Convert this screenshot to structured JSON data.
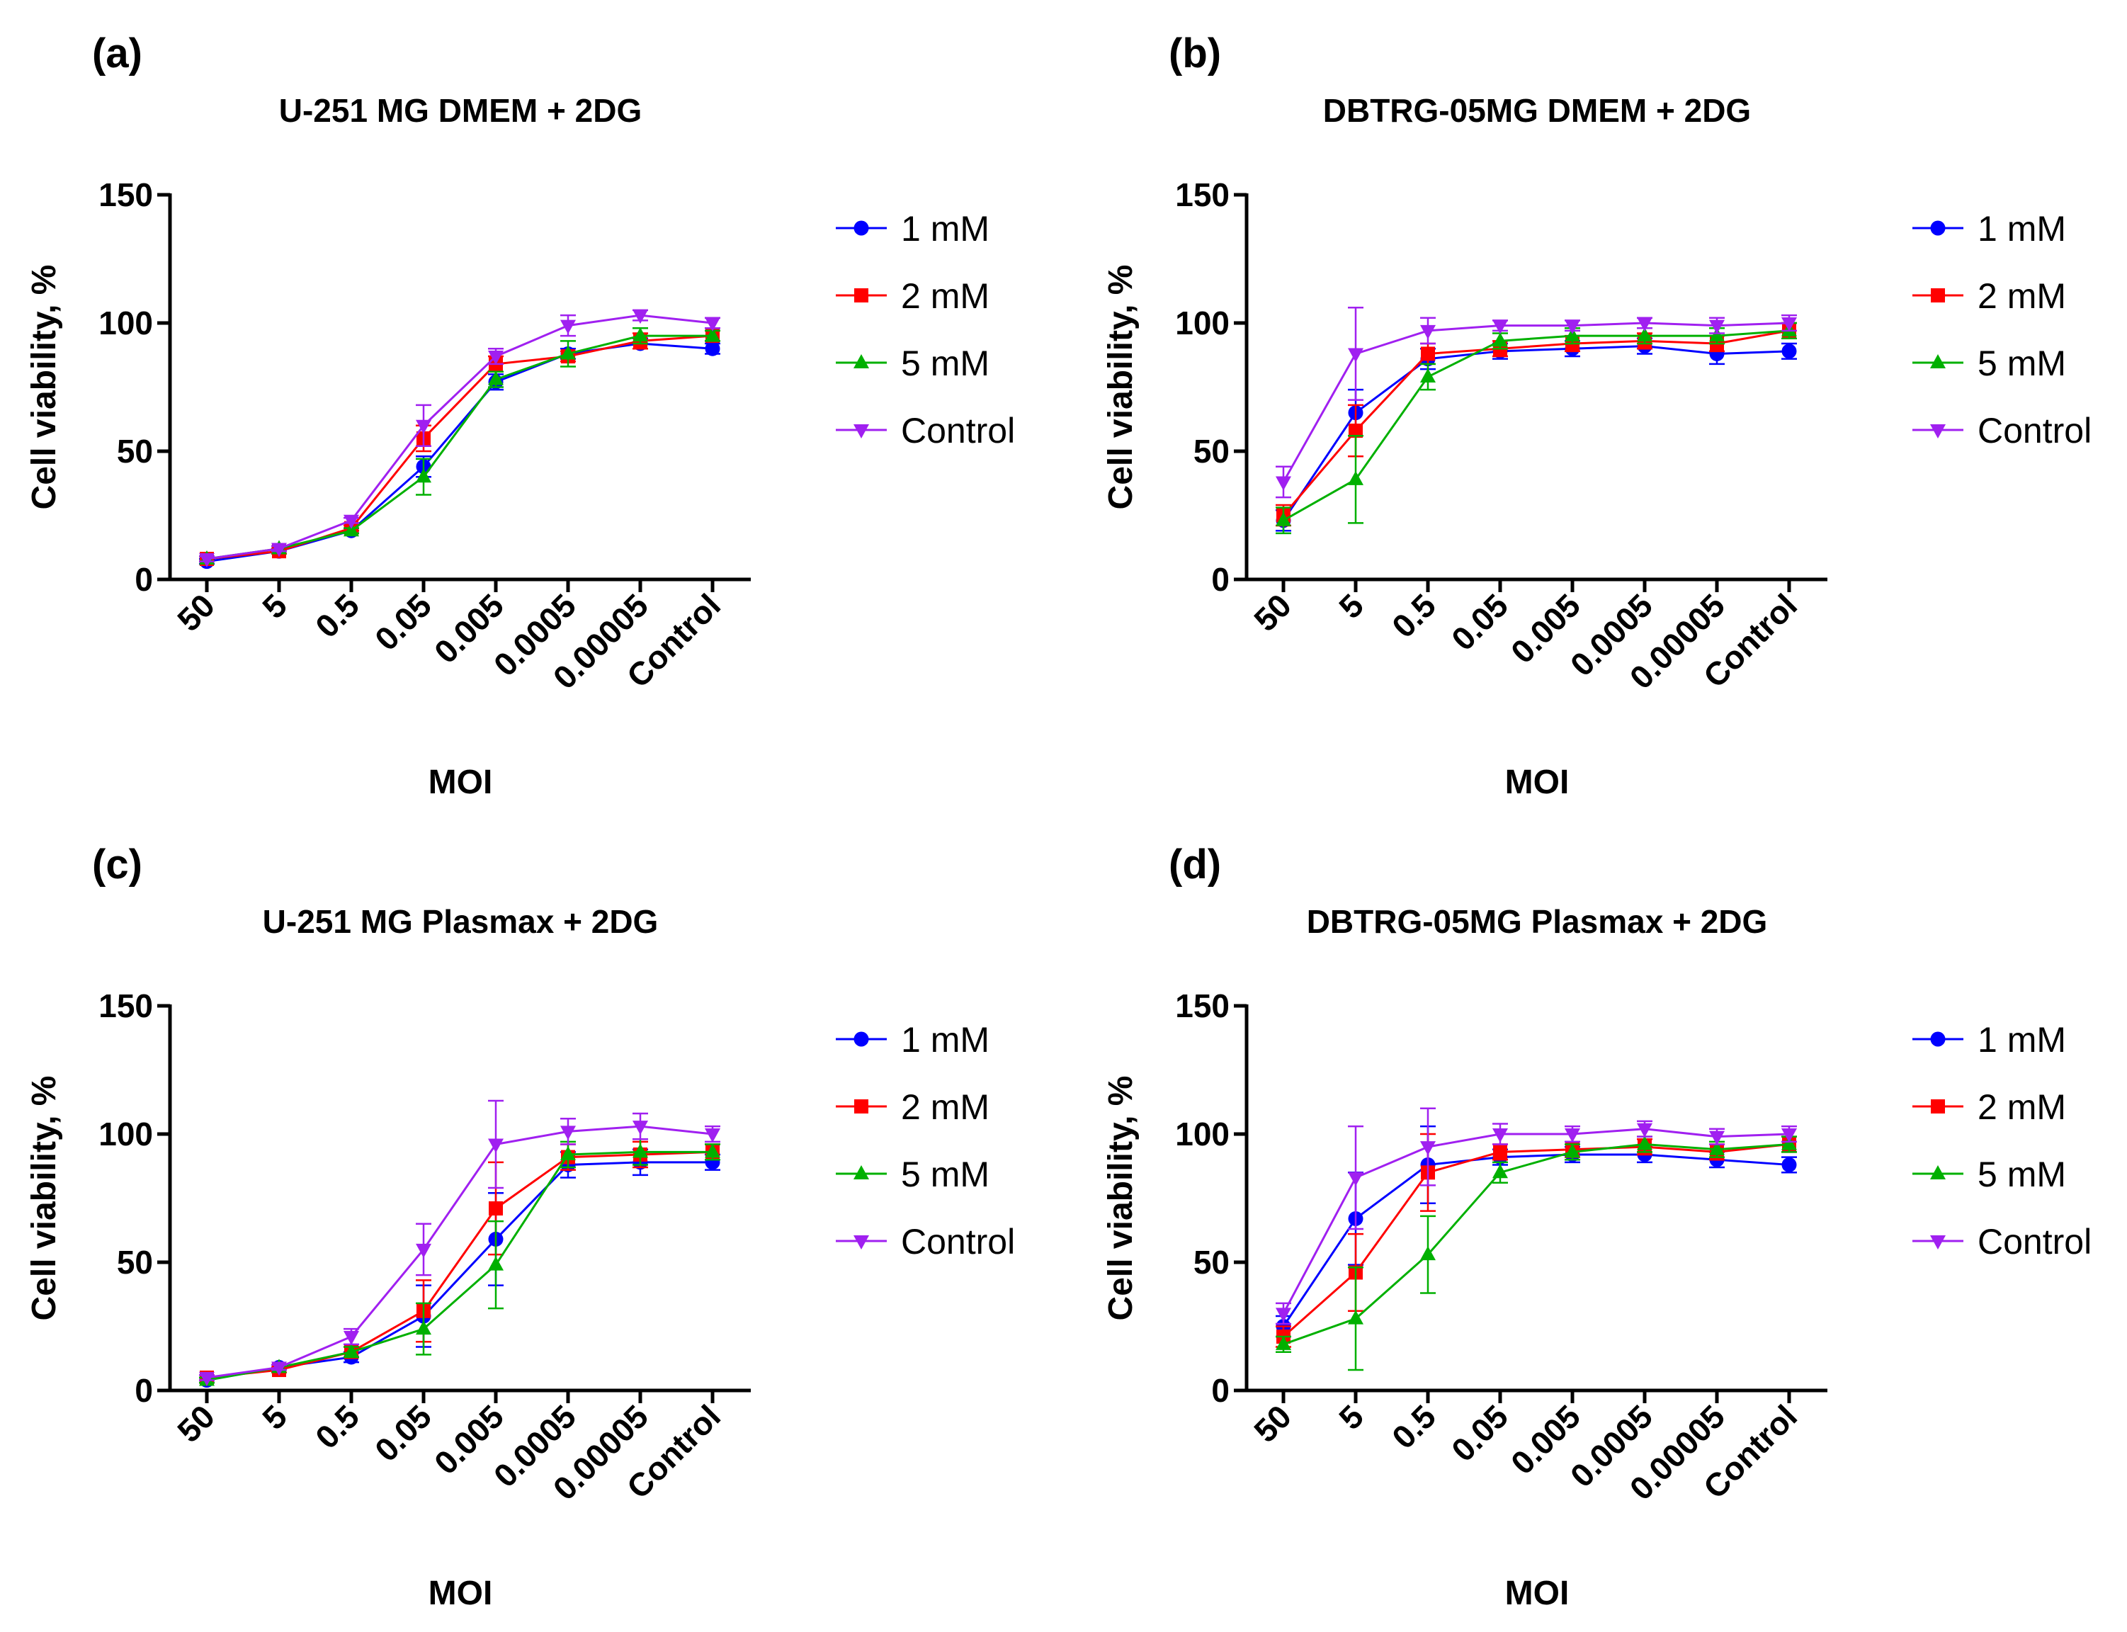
{
  "figure": {
    "panels": [
      "(a)",
      "(b)",
      "(c)",
      "(d)"
    ]
  },
  "chart_data": [
    {
      "panel_label": "(a)",
      "type": "line",
      "title": "U-251 MG DMEM + 2DG",
      "xlabel": "MOI",
      "ylabel": "Cell viability, %",
      "ylim": [
        0,
        150
      ],
      "yticks": [
        "0",
        "50",
        "100",
        "150"
      ],
      "categories": [
        "50",
        "5",
        "0.5",
        "0.05",
        "0.005",
        "0.0005",
        "0.00005",
        "Control"
      ],
      "legend_position": "right",
      "series": [
        {
          "name": "1 mM",
          "color": "#0000ff",
          "marker": "circle",
          "values": [
            7,
            11,
            19,
            44,
            77,
            88,
            92,
            90
          ],
          "errors": [
            1,
            1,
            1,
            4,
            3,
            2,
            2,
            2
          ]
        },
        {
          "name": "2 mM",
          "color": "#ff0000",
          "marker": "square",
          "values": [
            8,
            11,
            20,
            55,
            84,
            87,
            93,
            95
          ],
          "errors": [
            1,
            1,
            1,
            5,
            3,
            2,
            3,
            2
          ]
        },
        {
          "name": "5 mM",
          "color": "#00b000",
          "marker": "triangle-up",
          "values": [
            8,
            12,
            19,
            40,
            78,
            88,
            95,
            95
          ],
          "errors": [
            1,
            1,
            1,
            7,
            3,
            5,
            3,
            2
          ]
        },
        {
          "name": "Control",
          "color": "#a020f0",
          "marker": "triangle-down",
          "values": [
            8,
            12,
            23,
            60,
            87,
            99,
            103,
            100
          ],
          "errors": [
            1,
            1,
            1,
            8,
            3,
            4,
            2,
            2
          ]
        }
      ]
    },
    {
      "panel_label": "(b)",
      "type": "line",
      "title": "DBTRG-05MG DMEM + 2DG",
      "xlabel": "MOI",
      "ylabel": "Cell viability, %",
      "ylim": [
        0,
        150
      ],
      "yticks": [
        "0",
        "50",
        "100",
        "150"
      ],
      "categories": [
        "50",
        "5",
        "0.5",
        "0.05",
        "0.005",
        "0.0005",
        "0.00005",
        "Control"
      ],
      "legend_position": "right",
      "series": [
        {
          "name": "1 mM",
          "color": "#0000ff",
          "marker": "circle",
          "values": [
            23,
            65,
            86,
            89,
            90,
            91,
            88,
            89
          ],
          "errors": [
            4,
            9,
            4,
            3,
            3,
            3,
            4,
            3
          ]
        },
        {
          "name": "2 mM",
          "color": "#ff0000",
          "marker": "square",
          "values": [
            25,
            58,
            88,
            90,
            92,
            93,
            92,
            97
          ],
          "errors": [
            4,
            10,
            4,
            3,
            3,
            3,
            3,
            3
          ]
        },
        {
          "name": "5 mM",
          "color": "#00b000",
          "marker": "triangle-up",
          "values": [
            23,
            39,
            79,
            93,
            95,
            95,
            95,
            97
          ],
          "errors": [
            5,
            17,
            5,
            3,
            3,
            3,
            3,
            3
          ]
        },
        {
          "name": "Control",
          "color": "#a020f0",
          "marker": "triangle-down",
          "values": [
            38,
            88,
            97,
            99,
            99,
            100,
            99,
            100
          ],
          "errors": [
            6,
            18,
            5,
            2,
            2,
            2,
            3,
            3
          ]
        }
      ]
    },
    {
      "panel_label": "(c)",
      "type": "line",
      "title": "U-251 MG Plasmax + 2DG",
      "xlabel": "MOI",
      "ylabel": "Cell viability, %",
      "ylim": [
        0,
        150
      ],
      "yticks": [
        "0",
        "50",
        "100",
        "150"
      ],
      "categories": [
        "50",
        "5",
        "0.5",
        "0.05",
        "0.005",
        "0.0005",
        "0.00005",
        "Control"
      ],
      "legend_position": "right",
      "series": [
        {
          "name": "1 mM",
          "color": "#0000ff",
          "marker": "circle",
          "values": [
            4,
            9,
            13,
            29,
            59,
            88,
            89,
            89
          ],
          "errors": [
            1,
            1,
            2,
            12,
            18,
            5,
            5,
            3
          ]
        },
        {
          "name": "2 mM",
          "color": "#ff0000",
          "marker": "square",
          "values": [
            5,
            8,
            15,
            31,
            71,
            91,
            92,
            93
          ],
          "errors": [
            1,
            1,
            2,
            12,
            18,
            5,
            5,
            3
          ]
        },
        {
          "name": "5 mM",
          "color": "#00b000",
          "marker": "triangle-up",
          "values": [
            4,
            9,
            15,
            24,
            49,
            92,
            93,
            93
          ],
          "errors": [
            1,
            1,
            2,
            10,
            17,
            5,
            5,
            3
          ]
        },
        {
          "name": "Control",
          "color": "#a020f0",
          "marker": "triangle-down",
          "values": [
            5,
            9,
            21,
            55,
            96,
            101,
            103,
            100
          ],
          "errors": [
            1,
            1,
            3,
            10,
            17,
            5,
            5,
            3
          ]
        }
      ]
    },
    {
      "panel_label": "(d)",
      "type": "line",
      "title": "DBTRG-05MG Plasmax + 2DG",
      "xlabel": "MOI",
      "ylabel": "Cell viability, %",
      "ylim": [
        0,
        150
      ],
      "yticks": [
        "0",
        "50",
        "100",
        "150"
      ],
      "categories": [
        "50",
        "5",
        "0.5",
        "0.05",
        "0.005",
        "0.0005",
        "0.00005",
        "Control"
      ],
      "legend_position": "right",
      "series": [
        {
          "name": "1 mM",
          "color": "#0000ff",
          "marker": "circle",
          "values": [
            25,
            67,
            88,
            91,
            92,
            92,
            90,
            88
          ],
          "errors": [
            4,
            18,
            15,
            3,
            3,
            3,
            3,
            3
          ]
        },
        {
          "name": "2 mM",
          "color": "#ff0000",
          "marker": "square",
          "values": [
            21,
            46,
            85,
            93,
            94,
            95,
            93,
            96
          ],
          "errors": [
            4,
            15,
            15,
            3,
            3,
            3,
            3,
            3
          ]
        },
        {
          "name": "5 mM",
          "color": "#00b000",
          "marker": "triangle-up",
          "values": [
            18,
            28,
            53,
            85,
            93,
            96,
            94,
            96
          ],
          "errors": [
            3,
            20,
            15,
            4,
            3,
            3,
            3,
            3
          ]
        },
        {
          "name": "Control",
          "color": "#a020f0",
          "marker": "triangle-down",
          "values": [
            30,
            83,
            95,
            100,
            100,
            102,
            99,
            100
          ],
          "errors": [
            4,
            20,
            15,
            4,
            3,
            3,
            3,
            3
          ]
        }
      ]
    }
  ]
}
